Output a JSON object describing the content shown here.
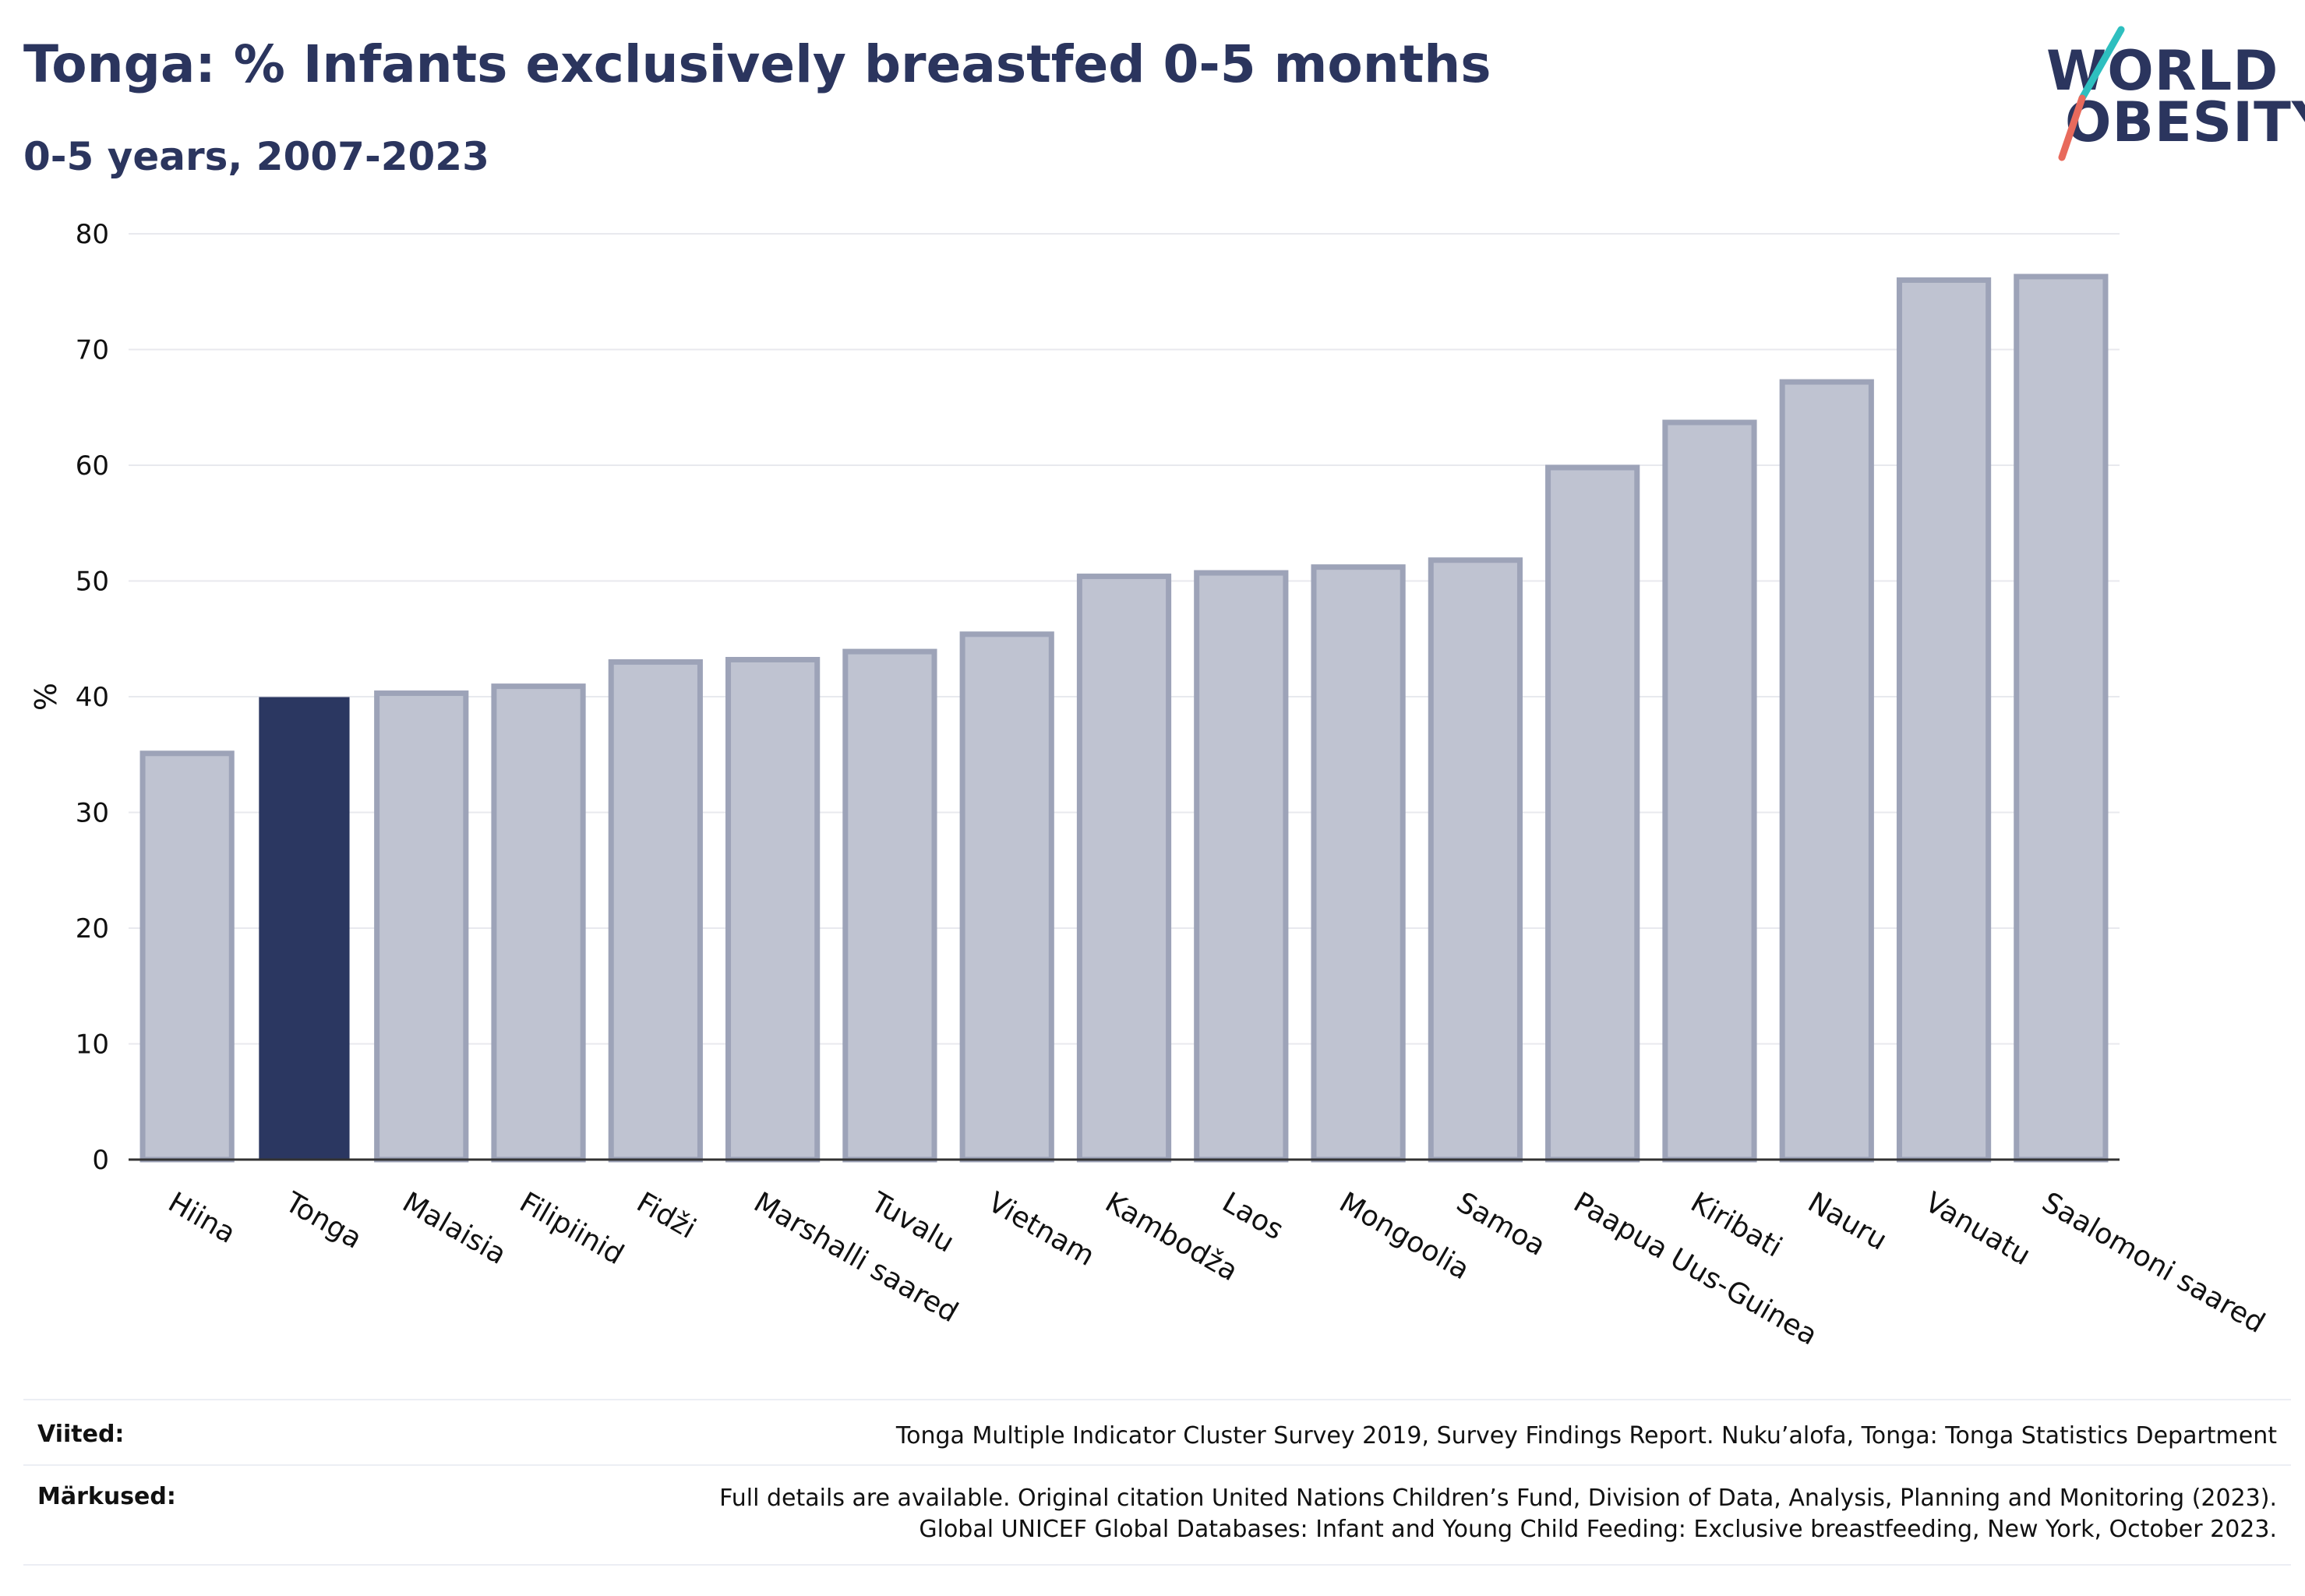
{
  "header": {
    "title": "Tonga: % Infants exclusively breastfed 0-5 months",
    "subtitle": "0-5 years, 2007-2023"
  },
  "logo": {
    "line1": "WORLD",
    "line2": "OBESITY"
  },
  "colors": {
    "highlight": "#2b3761",
    "bar_fill": "#bfc3d1",
    "bar_stroke": "#9da3b8",
    "grid": "#e8e9ee",
    "axis": "#333333",
    "logo_teal": "#2ebfbf",
    "logo_coral": "#e86a5c"
  },
  "chart_data": {
    "type": "bar",
    "title": "Tonga: % Infants exclusively breastfed 0-5 months",
    "subtitle": "0-5 years, 2007-2023",
    "xlabel": "",
    "ylabel": "%",
    "ylim": [
      0,
      80
    ],
    "yticks": [
      0,
      10,
      20,
      30,
      40,
      50,
      60,
      70,
      80
    ],
    "grid": true,
    "highlight": "Tonga",
    "categories": [
      "Hiina",
      "Tonga",
      "Malaisia",
      "Filipiinid",
      "Fidži",
      "Marshalli saared",
      "Tuvalu",
      "Vietnam",
      "Kambodža",
      "Laos",
      "Mongoolia",
      "Samoa",
      "Paapua Uus-Guinea",
      "Kiribati",
      "Nauru",
      "Vanuatu",
      "Saalomoni saared"
    ],
    "values": [
      35.1,
      39.9,
      40.3,
      40.9,
      43.0,
      43.2,
      43.9,
      45.4,
      50.4,
      50.7,
      51.2,
      51.8,
      59.8,
      63.7,
      67.2,
      76.0,
      76.3
    ]
  },
  "footer": {
    "sources_label": "Viited:",
    "sources_text": "Tonga Multiple Indicator Cluster Survey 2019, Survey Findings Report. Nuku’alofa, Tonga: Tonga Statistics Department",
    "notes_label": "Märkused:",
    "notes_line1": "Full details are available. Original citation United Nations Children’s Fund, Division of Data, Analysis, Planning and Monitoring (2023).",
    "notes_line2": "Global UNICEF Global Databases: Infant and Young Child Feeding: Exclusive breastfeeding, New York, October 2023."
  }
}
